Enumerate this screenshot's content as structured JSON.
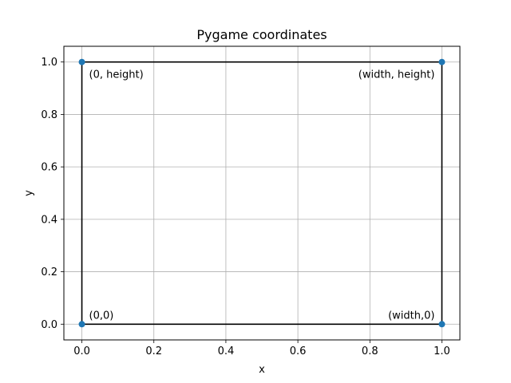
{
  "chart_data": {
    "type": "scatter",
    "title": "Pygame coordinates",
    "xlabel": "x",
    "ylabel": "y",
    "xlim": [
      -0.05,
      1.05
    ],
    "ylim": [
      -0.06,
      1.06
    ],
    "xticks": [
      0.0,
      0.2,
      0.4,
      0.6,
      0.8,
      1.0
    ],
    "yticks": [
      0.0,
      0.2,
      0.4,
      0.6,
      0.8,
      1.0
    ],
    "xtick_labels": [
      "0.0",
      "0.2",
      "0.4",
      "0.6",
      "0.8",
      "1.0"
    ],
    "ytick_labels": [
      "0.0",
      "0.2",
      "0.4",
      "0.6",
      "0.8",
      "1.0"
    ],
    "grid": true,
    "points": [
      {
        "x": 0,
        "y": 0
      },
      {
        "x": 1,
        "y": 0
      },
      {
        "x": 0,
        "y": 1
      },
      {
        "x": 1,
        "y": 1
      }
    ],
    "outline": [
      {
        "x": 0,
        "y": 0
      },
      {
        "x": 1,
        "y": 0
      },
      {
        "x": 1,
        "y": 1
      },
      {
        "x": 0,
        "y": 1
      },
      {
        "x": 0,
        "y": 0
      }
    ],
    "annotations": [
      {
        "text": "(0,0)",
        "x": 0,
        "y": 0,
        "anchor": "start",
        "placement": "above-right"
      },
      {
        "text": "(width,0)",
        "x": 1,
        "y": 0,
        "anchor": "end",
        "placement": "above-left"
      },
      {
        "text": "(0, height)",
        "x": 0,
        "y": 1,
        "anchor": "start",
        "placement": "below-right"
      },
      {
        "text": "(width, height)",
        "x": 1,
        "y": 1,
        "anchor": "end",
        "placement": "below-left"
      }
    ],
    "colors": {
      "points": "#1f77b4",
      "outline": "#000000",
      "grid": "#b0b0b0",
      "axes": "#000000"
    }
  }
}
